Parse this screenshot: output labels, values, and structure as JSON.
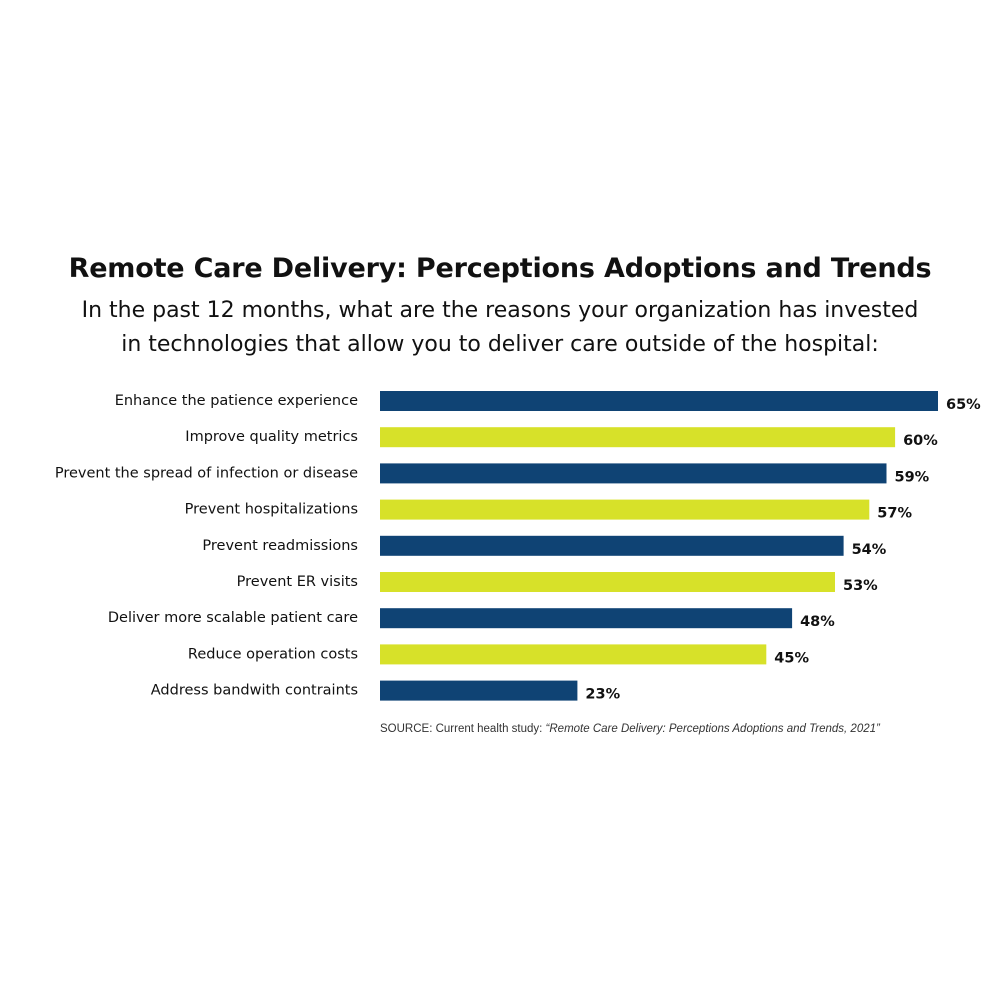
{
  "title": "Remote Care Delivery: Perceptions Adoptions and Trends",
  "subtitle_lines": [
    "In the past 12 months, what are the reasons your organization has invested",
    "in technologies that allow you to deliver care outside of the hospital:"
  ],
  "source": {
    "prefix": "SOURCE: Current health study:",
    "quote": "“Remote Care Delivery: Perceptions Adoptions and Trends, 2021”"
  },
  "colors": {
    "navy": "#0f4374",
    "lime": "#d7e129",
    "text": "#111111"
  },
  "chart_data": {
    "type": "bar",
    "orientation": "horizontal",
    "categories": [
      "Enhance the patience experience",
      "Improve quality metrics",
      "Prevent the spread of infection or disease",
      "Prevent hospitalizations",
      "Prevent readmissions",
      "Prevent ER visits",
      "Deliver more scalable patient care",
      "Reduce operation costs",
      "Address bandwith contraints"
    ],
    "values": [
      65,
      60,
      59,
      57,
      54,
      53,
      48,
      45,
      23
    ],
    "labels": [
      "65%",
      "60%",
      "59%",
      "57%",
      "54%",
      "53%",
      "48%",
      "45%",
      "23%"
    ],
    "bar_colors": [
      "navy",
      "lime",
      "navy",
      "lime",
      "navy",
      "lime",
      "navy",
      "lime",
      "navy"
    ],
    "xlim": [
      0,
      65
    ],
    "grid": false,
    "axes_visible": false
  }
}
